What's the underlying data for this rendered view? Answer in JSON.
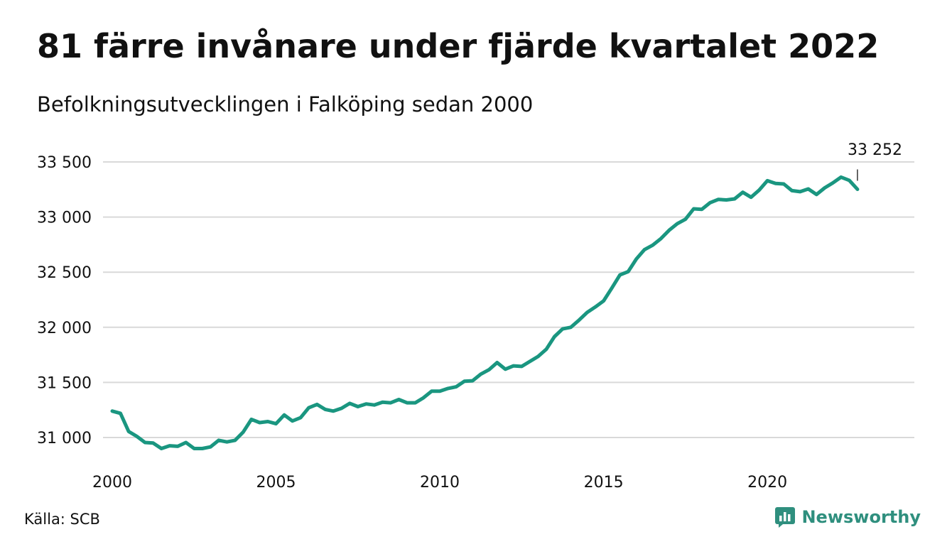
{
  "header": {
    "title": "81 färre invånare under fjärde kvartalet 2022",
    "subtitle": "Befolkningsutvecklingen i Falköping sedan 2000"
  },
  "footer": {
    "source": "Källa: SCB",
    "brand": "Newsworthy",
    "brand_icon": "bar-chart-logo-icon"
  },
  "colors": {
    "line": "#1a9680",
    "grid": "#d9d9d9",
    "brand": "#2f8f7e"
  },
  "chart_data": {
    "type": "line",
    "title": "81 färre invånare under fjärde kvartalet 2022",
    "subtitle": "Befolkningsutvecklingen i Falköping sedan 2000",
    "xlabel": "",
    "ylabel": "",
    "x_ticks": [
      2000,
      2005,
      2010,
      2015,
      2020
    ],
    "y_ticks": [
      31000,
      31500,
      32000,
      32500,
      33000,
      33500
    ],
    "y_tick_labels": [
      "31 000",
      "31 500",
      "32 000",
      "32 500",
      "33 000",
      "33 500"
    ],
    "ylim": [
      30850,
      33500
    ],
    "xlim": [
      2000,
      2023.75
    ],
    "grid": true,
    "legend": "none",
    "end_label": "33 252",
    "series": [
      {
        "x": [
          2000.0,
          2000.25,
          2000.5,
          2000.75,
          2001.0,
          2001.25,
          2001.5,
          2001.75,
          2002.0,
          2002.25,
          2002.5,
          2002.75,
          2003.0,
          2003.25,
          2003.5,
          2003.75,
          2004.0,
          2004.25,
          2004.5,
          2004.75,
          2005.0,
          2005.25,
          2005.5,
          2005.75,
          2006.0,
          2006.25,
          2006.5,
          2006.75,
          2007.0,
          2007.25,
          2007.5,
          2007.75,
          2008.0,
          2008.25,
          2008.5,
          2008.75,
          2009.0,
          2009.25,
          2009.5,
          2009.75,
          2010.0,
          2010.25,
          2010.5,
          2010.75,
          2011.0,
          2011.25,
          2011.5,
          2011.75,
          2012.0,
          2012.25,
          2012.5,
          2012.75,
          2013.0,
          2013.25,
          2013.5,
          2013.75,
          2014.0,
          2014.25,
          2014.5,
          2014.75,
          2015.0,
          2015.25,
          2015.5,
          2015.75,
          2016.0,
          2016.25,
          2016.5,
          2016.75,
          2017.0,
          2017.25,
          2017.5,
          2017.75,
          2018.0,
          2018.25,
          2018.5,
          2018.75,
          2019.0,
          2019.25,
          2019.5,
          2019.75,
          2020.0,
          2020.25,
          2020.5,
          2020.75,
          2021.0,
          2021.25,
          2021.5,
          2021.75,
          2022.0,
          2022.25,
          2022.5,
          2022.75
        ],
        "values": [
          31240,
          31220,
          31055,
          31010,
          30955,
          30950,
          30900,
          30925,
          30920,
          30955,
          30900,
          30900,
          30915,
          30975,
          30960,
          30975,
          31050,
          31165,
          31135,
          31145,
          31125,
          31205,
          31150,
          31180,
          31270,
          31300,
          31255,
          31240,
          31265,
          31310,
          31280,
          31305,
          31295,
          31320,
          31315,
          31345,
          31315,
          31315,
          31360,
          31420,
          31420,
          31445,
          31460,
          31510,
          31515,
          31575,
          31615,
          31680,
          31620,
          31650,
          31645,
          31690,
          31735,
          31800,
          31915,
          31985,
          32000,
          32065,
          32135,
          32185,
          32240,
          32355,
          32475,
          32505,
          32620,
          32705,
          32745,
          32805,
          32880,
          32940,
          32980,
          33075,
          33070,
          33130,
          33160,
          33155,
          33165,
          33225,
          33180,
          33245,
          33330,
          33305,
          33300,
          33240,
          33230,
          33255,
          33205,
          33265,
          33310,
          33362,
          33333,
          33252
        ]
      }
    ]
  }
}
